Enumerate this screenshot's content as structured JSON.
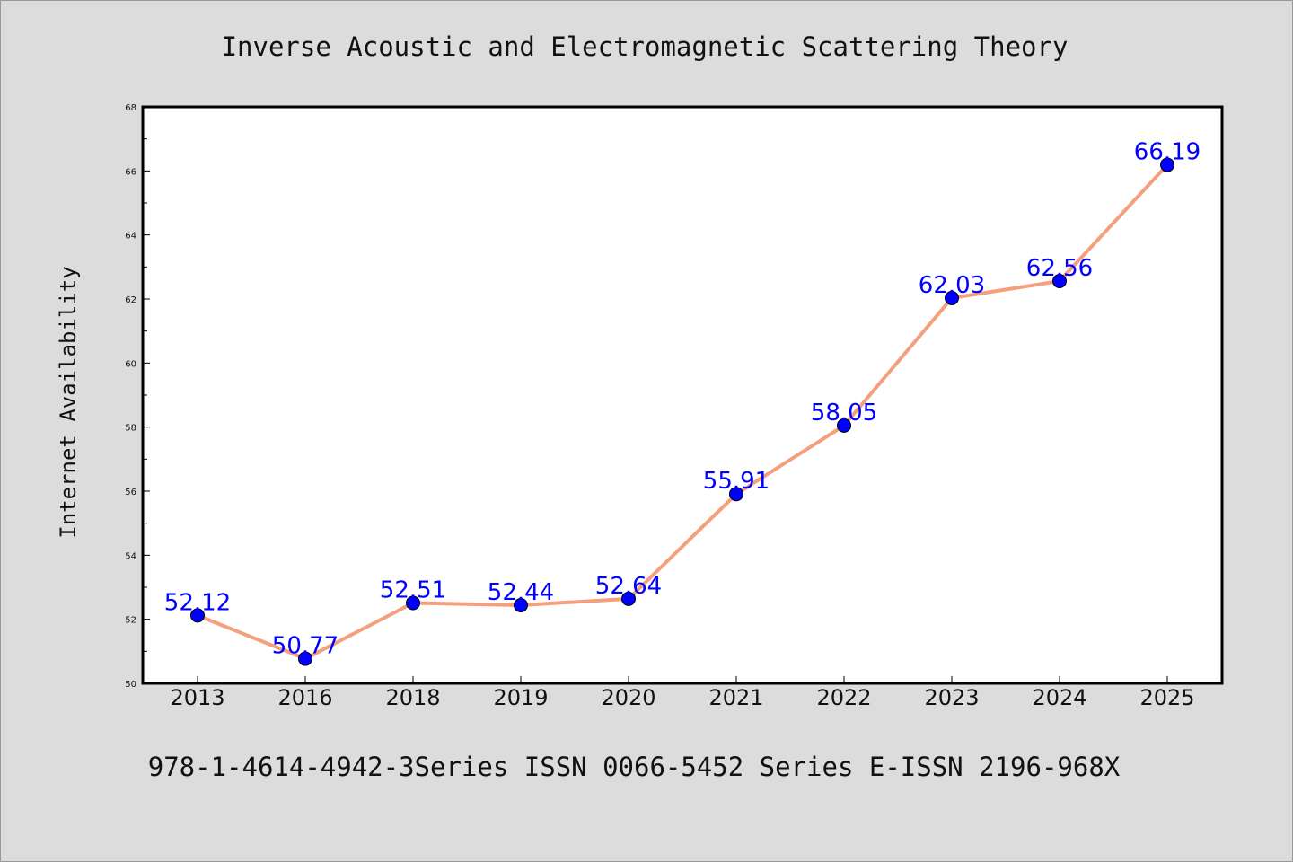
{
  "chart_data": {
    "type": "line",
    "title": "Inverse Acoustic and Electromagnetic Scattering Theory",
    "ylabel": "Internet Availability",
    "xlabel": "",
    "categories": [
      "2013",
      "2016",
      "2018",
      "2019",
      "2020",
      "2021",
      "2022",
      "2023",
      "2024",
      "2025"
    ],
    "series": [
      {
        "values": [
          52.12,
          50.77,
          52.51,
          52.44,
          52.64,
          55.91,
          58.05,
          62.03,
          62.56,
          66.19
        ],
        "line_color": "#f4a07e",
        "marker_color": "#0000ff"
      }
    ],
    "data_labels": [
      "52.12",
      "50.77",
      "52.51",
      "52.44",
      "52.64",
      "55.91",
      "58.05",
      "62.03",
      "62.56",
      "66.19"
    ],
    "ylim": [
      50,
      68
    ],
    "yticks": [
      "50",
      "52",
      "54",
      "56",
      "58",
      "60",
      "62",
      "64",
      "66",
      "68"
    ],
    "grid": false,
    "legend": "none"
  },
  "footer": "978-1-4614-4942-3Series ISSN 0066-5452 Series E-ISSN 2196-968X",
  "colors": {
    "background": "#dcdcdc",
    "plot_background": "#ffffff",
    "line": "#f4a07e",
    "marker": "#0000ff",
    "label": "#0000ff"
  }
}
